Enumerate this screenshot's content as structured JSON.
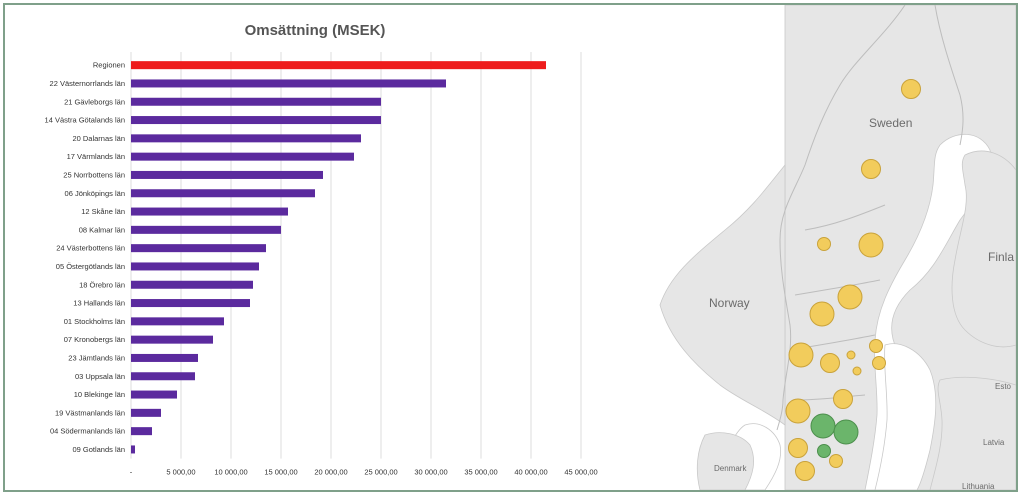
{
  "chart_data": {
    "type": "bar",
    "orientation": "horizontal",
    "title": "Omsättning (MSEK)",
    "categories": [
      "Regionen",
      "22 Västernorrlands län",
      "21 Gävleborgs län",
      "14 Västra Götalands län",
      "20 Dalarnas län",
      "17 Värmlands län",
      "25 Norrbottens län",
      "06 Jönköpings län",
      "12 Skåne län",
      "08 Kalmar län",
      "24 Västerbottens län",
      "05 Östergötlands län",
      "18 Örebro län",
      "13 Hallands län",
      "01 Stockholms län",
      "07 Kronobergs län",
      "23 Jämtlands län",
      "03 Uppsala län",
      "10 Blekinge län",
      "19 Västmanlands län",
      "04 Södermanlands län",
      "09 Gotlands län"
    ],
    "values": [
      41500,
      31500,
      25000,
      25000,
      23000,
      22300,
      19200,
      18400,
      15700,
      15000,
      13500,
      12800,
      12200,
      11900,
      9300,
      8200,
      6700,
      6400,
      4600,
      3000,
      2100,
      400
    ],
    "bar_colors": [
      "#ee1c1c",
      "#5b2a9e"
    ],
    "highlight_index": 0,
    "xlim": [
      0,
      45000
    ],
    "xticks": [
      0,
      5000,
      10000,
      15000,
      20000,
      25000,
      30000,
      35000,
      40000,
      45000
    ],
    "xtick_labels": [
      "-",
      "5 000,00",
      "10 000,00",
      "15 000,00",
      "20 000,00",
      "25 000,00",
      "30 000,00",
      "35 000,00",
      "40 000,00",
      "45 000,00"
    ],
    "grid": true,
    "legend": "none"
  },
  "map": {
    "labels": {
      "sweden": "Sweden",
      "norway": "Norway",
      "finland": "Finla",
      "denmark": "Denmark",
      "estonia": "Esto",
      "latvia": "Latvia",
      "lithuania": "Lithuania"
    },
    "colors": {
      "land": "#e6e6e6",
      "border": "#c9c9c9",
      "sea": "#ffffff",
      "bubble_yellow": "#f2cc5c",
      "bubble_yellow_stroke": "#c9a23a",
      "bubble_green": "#6bb56b",
      "bubble_green_stroke": "#4c8f4c"
    },
    "bubbles": [
      {
        "color": "yellow",
        "size": "medium"
      },
      {
        "color": "yellow",
        "size": "medium"
      },
      {
        "color": "yellow",
        "size": "small"
      },
      {
        "color": "yellow",
        "size": "large"
      },
      {
        "color": "yellow",
        "size": "large"
      },
      {
        "color": "yellow",
        "size": "large"
      },
      {
        "color": "yellow",
        "size": "large"
      },
      {
        "color": "yellow",
        "size": "medium"
      },
      {
        "color": "yellow",
        "size": "tiny"
      },
      {
        "color": "yellow",
        "size": "small"
      },
      {
        "color": "yellow",
        "size": "tiny"
      },
      {
        "color": "yellow",
        "size": "small"
      },
      {
        "color": "yellow",
        "size": "large"
      },
      {
        "color": "yellow",
        "size": "medium"
      },
      {
        "color": "green",
        "size": "large"
      },
      {
        "color": "green",
        "size": "large"
      },
      {
        "color": "yellow",
        "size": "medium"
      },
      {
        "color": "green",
        "size": "small"
      },
      {
        "color": "yellow",
        "size": "small"
      },
      {
        "color": "yellow",
        "size": "medium"
      }
    ]
  }
}
